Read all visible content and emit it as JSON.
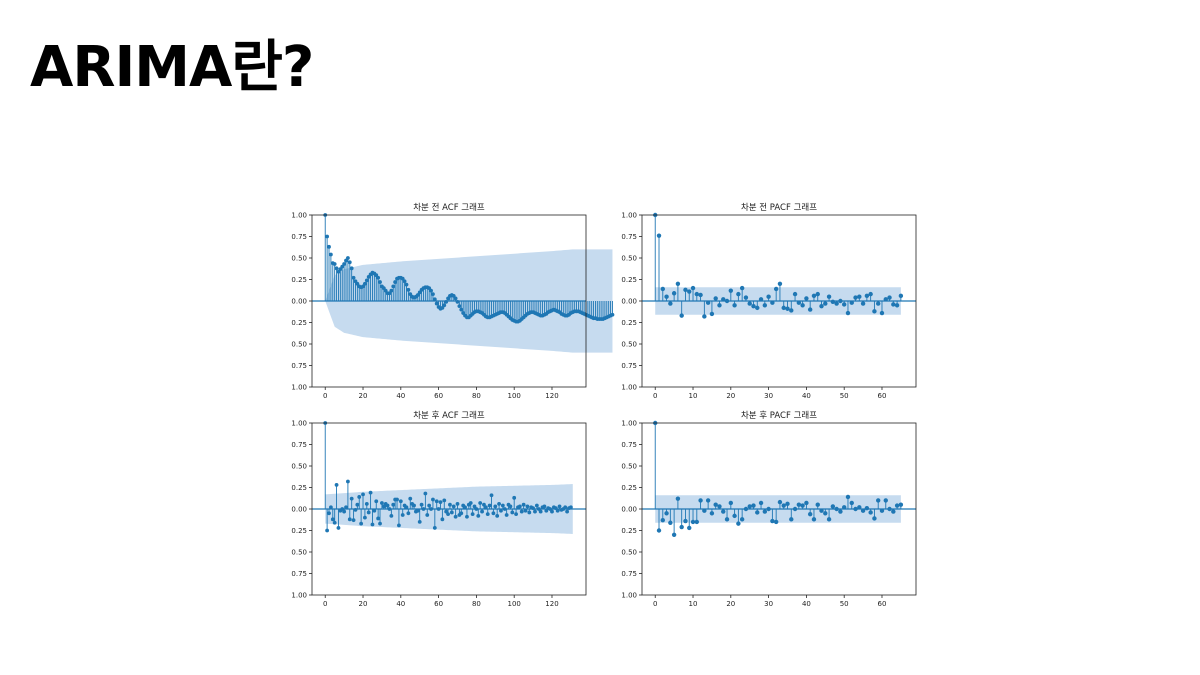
{
  "slide": {
    "title": "ARIMA란?"
  },
  "colors": {
    "stem": "#1f77b4",
    "band": "#c6dbef"
  },
  "chart_data": [
    {
      "type": "stem",
      "title": "차분 전 ACF 그래프",
      "y_tick_labels": [
        "1.00",
        "0.75",
        "0.50",
        "0.25",
        "0.00",
        "0.25",
        "0.50",
        "0.75",
        "1.00"
      ],
      "x_ticks": [
        0,
        20,
        40,
        60,
        80,
        100,
        120
      ],
      "xlim": [
        -7,
        138
      ],
      "ylim": [
        -1,
        1
      ],
      "confidence_band": {
        "lags": [
          0,
          5,
          10,
          20,
          40,
          60,
          80,
          100,
          120,
          131
        ],
        "upper": [
          0,
          0.3,
          0.37,
          0.42,
          0.46,
          0.49,
          0.52,
          0.55,
          0.58,
          0.6
        ]
      },
      "values": [
        1.0,
        0.75,
        0.63,
        0.54,
        0.44,
        0.43,
        0.38,
        0.34,
        0.37,
        0.4,
        0.43,
        0.47,
        0.5,
        0.45,
        0.38,
        0.27,
        0.23,
        0.2,
        0.17,
        0.16,
        0.17,
        0.2,
        0.24,
        0.28,
        0.31,
        0.33,
        0.32,
        0.3,
        0.27,
        0.22,
        0.17,
        0.15,
        0.12,
        0.09,
        0.09,
        0.12,
        0.17,
        0.22,
        0.26,
        0.27,
        0.27,
        0.26,
        0.23,
        0.19,
        0.13,
        0.08,
        0.05,
        0.04,
        0.05,
        0.07,
        0.1,
        0.13,
        0.15,
        0.16,
        0.16,
        0.15,
        0.12,
        0.08,
        0.02,
        -0.03,
        -0.07,
        -0.09,
        -0.08,
        -0.05,
        -0.01,
        0.03,
        0.06,
        0.07,
        0.06,
        0.03,
        -0.01,
        -0.06,
        -0.1,
        -0.14,
        -0.17,
        -0.19,
        -0.19,
        -0.17,
        -0.15,
        -0.13,
        -0.12,
        -0.12,
        -0.13,
        -0.14,
        -0.16,
        -0.18,
        -0.19,
        -0.19,
        -0.18,
        -0.17,
        -0.16,
        -0.15,
        -0.14,
        -0.13,
        -0.13,
        -0.14,
        -0.16,
        -0.18,
        -0.2,
        -0.22,
        -0.23,
        -0.24,
        -0.24,
        -0.23,
        -0.21,
        -0.19,
        -0.17,
        -0.15,
        -0.14,
        -0.13,
        -0.13,
        -0.14,
        -0.15,
        -0.16,
        -0.17,
        -0.17,
        -0.16,
        -0.15,
        -0.13,
        -0.12,
        -0.11,
        -0.1,
        -0.11,
        -0.12,
        -0.13,
        -0.15,
        -0.16,
        -0.17,
        -0.17,
        -0.16,
        -0.14,
        -0.13,
        -0.12,
        -0.12,
        -0.12,
        -0.13,
        -0.14,
        -0.15,
        -0.16,
        -0.17,
        -0.18,
        -0.19,
        -0.2,
        -0.2,
        -0.21,
        -0.21,
        -0.21,
        -0.21,
        -0.2,
        -0.19,
        -0.18,
        -0.17,
        -0.16
      ]
    },
    {
      "type": "stem",
      "title": "차분 전 PACF 그래프",
      "y_tick_labels": [
        "1.00",
        "0.75",
        "0.50",
        "0.25",
        "0.00",
        "0.25",
        "0.50",
        "0.75",
        "1.00"
      ],
      "x_ticks": [
        0,
        10,
        20,
        30,
        40,
        50,
        60
      ],
      "xlim": [
        -3.5,
        69
      ],
      "ylim": [
        -1,
        1
      ],
      "confidence_band": {
        "lags": [
          0,
          65
        ],
        "upper": [
          0.16,
          0.16
        ]
      },
      "values": [
        1.0,
        0.76,
        0.14,
        0.05,
        -0.03,
        0.09,
        0.2,
        -0.17,
        0.13,
        0.11,
        0.15,
        0.08,
        0.07,
        -0.18,
        -0.02,
        -0.15,
        0.03,
        -0.05,
        0.02,
        0.0,
        0.12,
        -0.05,
        0.08,
        0.15,
        0.04,
        -0.03,
        -0.06,
        -0.08,
        0.02,
        -0.05,
        0.05,
        -0.02,
        0.14,
        0.2,
        -0.08,
        -0.09,
        -0.11,
        0.08,
        -0.02,
        -0.05,
        0.03,
        -0.1,
        0.06,
        0.08,
        -0.06,
        -0.03,
        0.05,
        -0.01,
        -0.03,
        0.0,
        -0.04,
        -0.14,
        -0.02,
        0.04,
        0.05,
        -0.03,
        0.06,
        0.08,
        -0.12,
        -0.03,
        -0.14,
        0.02,
        0.04,
        -0.04,
        -0.05,
        0.06
      ]
    },
    {
      "type": "stem",
      "title": "차분 후 ACF 그래프",
      "y_tick_labels": [
        "1.00",
        "0.75",
        "0.50",
        "0.25",
        "0.00",
        "0.25",
        "0.50",
        "0.75",
        "1.00"
      ],
      "x_ticks": [
        0,
        20,
        40,
        60,
        80,
        100,
        120
      ],
      "xlim": [
        -7,
        138
      ],
      "ylim": [
        -1,
        1
      ],
      "confidence_band": {
        "lags": [
          0,
          20,
          40,
          60,
          80,
          100,
          120,
          131
        ],
        "upper": [
          0.17,
          0.2,
          0.22,
          0.24,
          0.26,
          0.27,
          0.28,
          0.29
        ]
      },
      "values": [
        1.0,
        -0.25,
        -0.05,
        0.02,
        -0.12,
        -0.16,
        0.28,
        -0.22,
        -0.02,
        0.0,
        -0.03,
        0.02,
        0.32,
        -0.12,
        0.12,
        -0.13,
        -0.01,
        0.05,
        0.14,
        -0.17,
        0.17,
        -0.1,
        0.06,
        -0.04,
        0.19,
        -0.18,
        -0.02,
        0.09,
        -0.11,
        -0.17,
        0.07,
        0.03,
        0.06,
        0.04,
        0.0,
        -0.08,
        0.05,
        0.11,
        0.11,
        -0.19,
        0.09,
        -0.07,
        0.04,
        0.02,
        -0.05,
        0.12,
        0.06,
        0.04,
        -0.03,
        -0.02,
        -0.15,
        0.05,
        0.0,
        0.18,
        -0.07,
        0.04,
        0.0,
        0.11,
        -0.22,
        0.09,
        0.0,
        0.08,
        -0.12,
        0.1,
        -0.03,
        -0.06,
        0.05,
        -0.04,
        0.03,
        -0.09,
        0.06,
        -0.07,
        -0.05,
        0.04,
        0.02,
        -0.09,
        0.05,
        0.07,
        -0.06,
        0.03,
        0.0,
        -0.08,
        0.07,
        -0.03,
        0.05,
        0.02,
        -0.06,
        0.04,
        0.16,
        -0.05,
        0.03,
        -0.08,
        0.06,
        -0.02,
        0.04,
        0.0,
        -0.07,
        0.05,
        0.03,
        -0.04,
        0.13,
        -0.06,
        0.02,
        0.03,
        -0.03,
        0.05,
        -0.02,
        0.03,
        -0.04,
        0.02,
        0.01,
        -0.03,
        0.04,
        0.0,
        -0.03,
        0.02,
        0.03,
        -0.02,
        0.01,
        0.0,
        -0.03,
        0.02,
        0.01,
        -0.02,
        0.03,
        -0.01,
        0.0,
        0.02,
        -0.03,
        0.01,
        0.02
      ]
    },
    {
      "type": "stem",
      "title": "차분 후 PACF 그래프",
      "y_tick_labels": [
        "1.00",
        "0.75",
        "0.50",
        "0.25",
        "0.00",
        "0.25",
        "0.50",
        "0.75",
        "1.00"
      ],
      "x_ticks": [
        0,
        10,
        20,
        30,
        40,
        50,
        60
      ],
      "xlim": [
        -3.5,
        69
      ],
      "ylim": [
        -1,
        1
      ],
      "confidence_band": {
        "lags": [
          0,
          65
        ],
        "upper": [
          0.16,
          0.16
        ]
      },
      "values": [
        1.0,
        -0.25,
        -0.13,
        -0.05,
        -0.16,
        -0.3,
        0.12,
        -0.21,
        -0.14,
        -0.22,
        -0.15,
        -0.15,
        0.1,
        -0.02,
        0.1,
        -0.05,
        0.05,
        0.03,
        -0.03,
        -0.12,
        0.07,
        -0.08,
        -0.17,
        -0.12,
        0.0,
        0.03,
        0.04,
        -0.04,
        0.07,
        -0.03,
        0.0,
        -0.14,
        -0.15,
        0.08,
        0.04,
        0.06,
        -0.12,
        0.0,
        0.05,
        0.04,
        0.07,
        -0.06,
        -0.12,
        0.05,
        -0.02,
        -0.05,
        -0.12,
        0.03,
        0.0,
        -0.03,
        0.02,
        0.14,
        0.07,
        0.0,
        0.02,
        -0.02,
        0.01,
        -0.04,
        -0.11,
        0.1,
        -0.02,
        0.1,
        0.0,
        -0.03,
        0.04,
        0.05
      ]
    }
  ]
}
